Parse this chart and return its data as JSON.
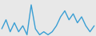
{
  "values": [
    3,
    6,
    2,
    5,
    2,
    4,
    1,
    11,
    3,
    1,
    2,
    1,
    2,
    4,
    7,
    9,
    6,
    8,
    5,
    7,
    4,
    2,
    4
  ],
  "line_color": "#3a9fd4",
  "background_color": "#e8e8e8",
  "linewidth": 1.0
}
